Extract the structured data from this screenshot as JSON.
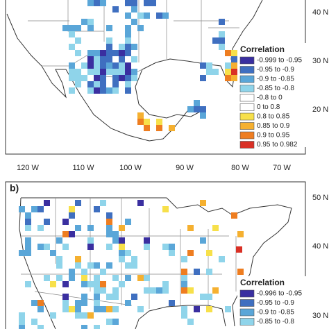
{
  "panel_a": {
    "lat_labels": [
      "40 N",
      "30 N",
      "20 N"
    ],
    "lon_labels": [
      "120 W",
      "110 W",
      "100 W",
      "90 W",
      "80 W",
      "70 W"
    ],
    "legend": {
      "title": "Correlation",
      "items": [
        {
          "label": "-0.999 to -0.95",
          "color": "#3a2fa0"
        },
        {
          "label": "-0.95 to -0.9",
          "color": "#3f6fc0"
        },
        {
          "label": "-0.9 to -0.85",
          "color": "#5aa6d8"
        },
        {
          "label": "-0.85 to -0.8",
          "color": "#8fd4ea"
        },
        {
          "label": "-0.8 to 0",
          "color": "#ffffff"
        },
        {
          "label": "0 to 0.8",
          "color": "#ffffff"
        },
        {
          "label": "0.8 to 0.85",
          "color": "#f7e04a"
        },
        {
          "label": "0.85 to 0.9",
          "color": "#f5b030"
        },
        {
          "label": "0.9 to 0.95",
          "color": "#ee7d20"
        },
        {
          "label": "0.95 to 0.982",
          "color": "#d93025"
        }
      ]
    }
  },
  "panel_b": {
    "label": "b)",
    "lat_labels": [
      "50 N",
      "40 N",
      "30 N"
    ],
    "legend": {
      "title": "Correlation",
      "items": [
        {
          "label": "-0.996 to -0.95",
          "color": "#3a2fa0"
        },
        {
          "label": "-0.95 to -0.9",
          "color": "#3f6fc0"
        },
        {
          "label": "-0.9 to -0.85",
          "color": "#5aa6d8"
        },
        {
          "label": "-0.85 to -0.8",
          "color": "#8fd4ea"
        }
      ]
    }
  }
}
